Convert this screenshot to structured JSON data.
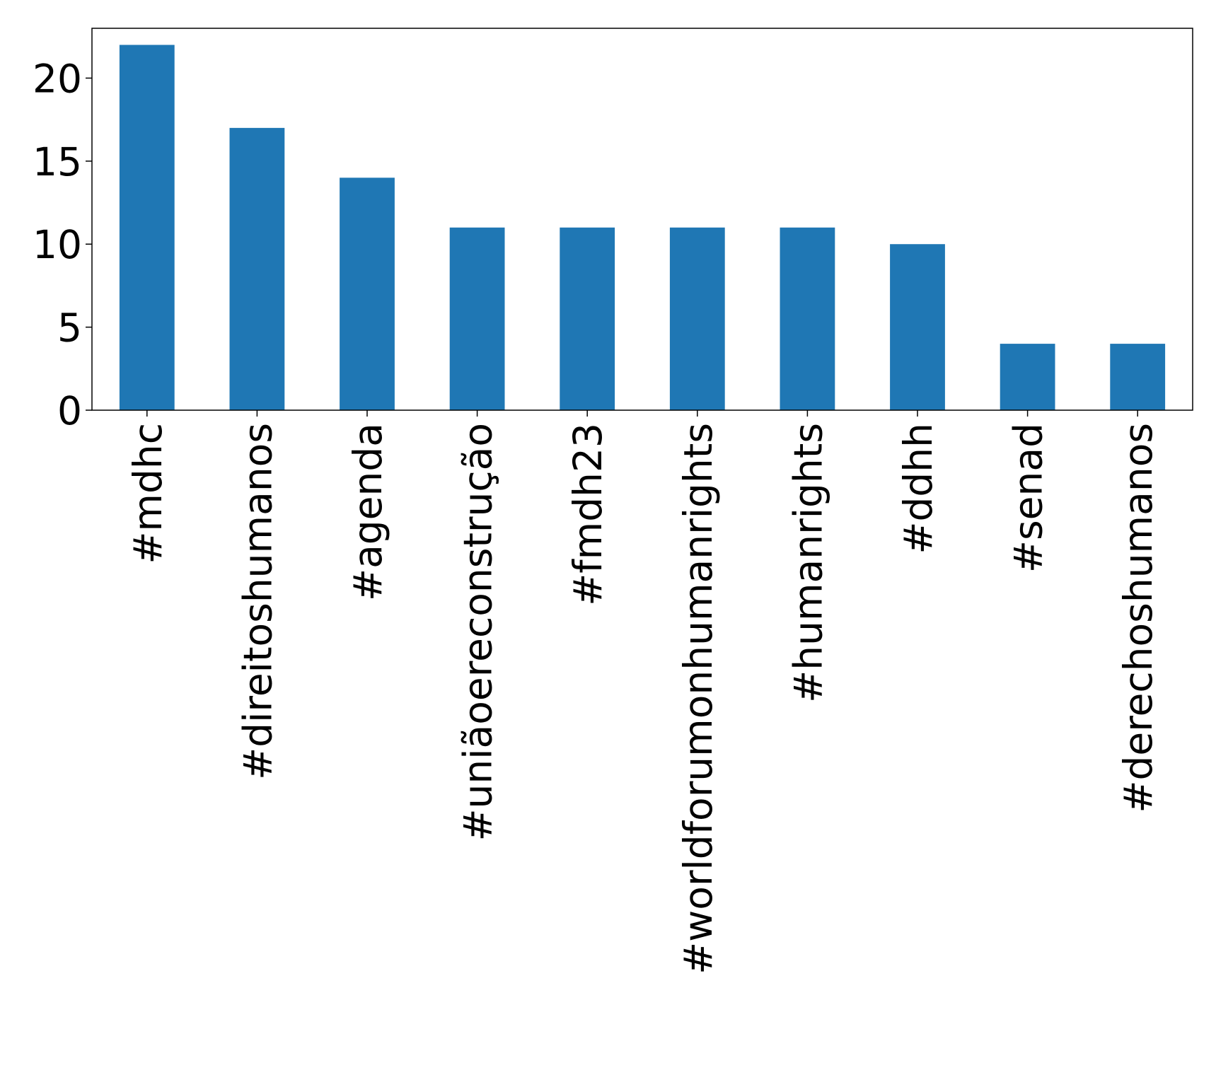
{
  "chart_data": {
    "type": "bar",
    "title": "",
    "xlabel": "",
    "ylabel": "",
    "categories": [
      "#mdhc",
      "#direitoshumanos",
      "#agenda",
      "#uniãoereconstrução",
      "#fmdh23",
      "#worldforumonhumanrights",
      "#humanrights",
      "#ddhh",
      "#senad",
      "#derechoshumanos"
    ],
    "values": [
      22,
      17,
      14,
      11,
      11,
      11,
      11,
      10,
      4,
      4
    ],
    "ylim": [
      0,
      23
    ],
    "yticks": [
      0,
      5,
      10,
      15,
      20
    ],
    "grid": false,
    "legend": false,
    "bar_color": "#1f77b4"
  }
}
